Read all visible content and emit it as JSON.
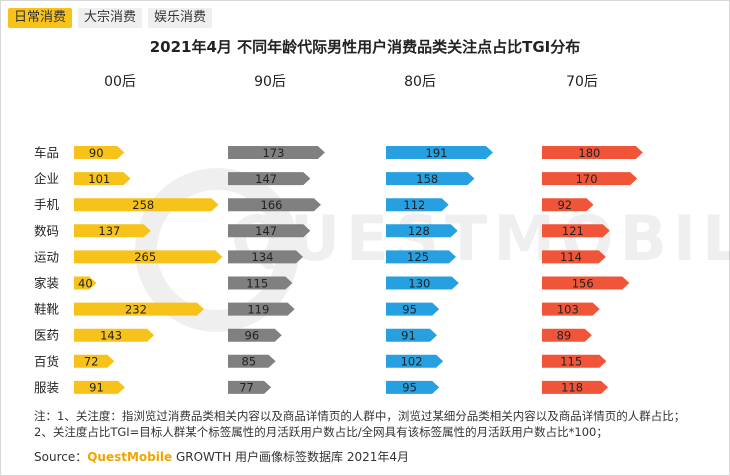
{
  "tabs": [
    {
      "label": "日常消费",
      "active": true
    },
    {
      "label": "大宗消费",
      "active": false
    },
    {
      "label": "娱乐消费",
      "active": false
    }
  ],
  "chart_data": {
    "type": "bar",
    "title": "2021年4月 不同年龄代际男性用户消费品类关注点占比TGI分布",
    "categories": [
      "车品",
      "企业",
      "手机",
      "数码",
      "运动",
      "家装",
      "鞋靴",
      "医药",
      "百货",
      "服装"
    ],
    "series": [
      {
        "name": "00后",
        "color": "#f7c21a",
        "values": [
          90,
          101,
          258,
          137,
          265,
          40,
          232,
          143,
          72,
          91
        ]
      },
      {
        "name": "90后",
        "color": "#808080",
        "values": [
          173,
          147,
          166,
          147,
          134,
          115,
          119,
          96,
          85,
          77
        ]
      },
      {
        "name": "80后",
        "color": "#26a0e0",
        "values": [
          191,
          158,
          112,
          128,
          125,
          130,
          95,
          91,
          102,
          95
        ]
      },
      {
        "name": "70后",
        "color": "#f0553a",
        "values": [
          180,
          170,
          92,
          121,
          114,
          156,
          103,
          89,
          115,
          118
        ]
      }
    ],
    "orientation": "horizontal",
    "grid": false
  },
  "watermark": "QUESTMOBILE",
  "note": "注：1、关注度：指浏览过消费品类相关内容以及商品详情页的人群中，浏览过某细分品类相关内容以及商品详情页的人群占比；2、关注度占比TGI=目标人群某个标签属性的月活跃用户数占比/全网具有该标签属性的月活跃用户数占比*100；",
  "source": {
    "prefix": "Source：",
    "brand": "QuestMobile",
    "suffix": " GROWTH 用户画像标签数据库 2021年4月"
  }
}
